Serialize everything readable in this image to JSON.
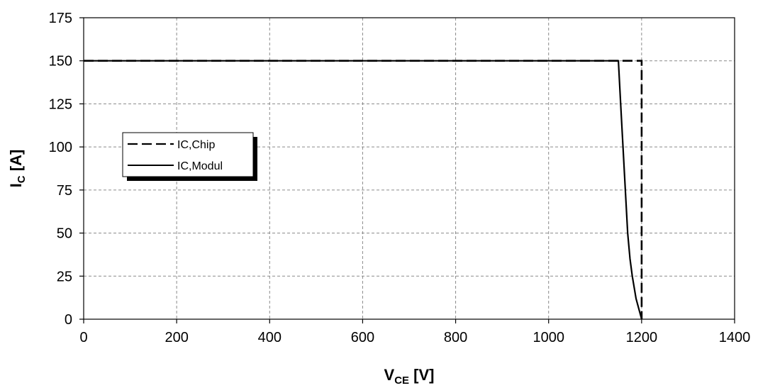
{
  "chart_data": {
    "type": "line",
    "xlabel": {
      "main": "V",
      "sub": "CE",
      "unit": " [V]"
    },
    "ylabel": {
      "main": "I",
      "sub": "C",
      "unit": " [A]"
    },
    "xlim": [
      0,
      1400
    ],
    "ylim": [
      0,
      175
    ],
    "x_ticks": [
      0,
      200,
      400,
      600,
      800,
      1000,
      1200,
      1400
    ],
    "y_ticks": [
      0,
      25,
      50,
      75,
      100,
      125,
      150,
      175
    ],
    "grid": true,
    "legend_position": "left",
    "series": [
      {
        "name": "IC,Chip",
        "style": "dashed",
        "color": "#000000",
        "points": [
          [
            0,
            150
          ],
          [
            1200,
            150
          ],
          [
            1200,
            0
          ]
        ]
      },
      {
        "name": "IC,Modul",
        "style": "solid",
        "color": "#000000",
        "points": [
          [
            0,
            150
          ],
          [
            1150,
            150
          ],
          [
            1155,
            125
          ],
          [
            1160,
            100
          ],
          [
            1165,
            75
          ],
          [
            1170,
            50
          ],
          [
            1175,
            35
          ],
          [
            1180,
            25
          ],
          [
            1188,
            12
          ],
          [
            1195,
            5
          ],
          [
            1200,
            0
          ]
        ]
      }
    ]
  }
}
